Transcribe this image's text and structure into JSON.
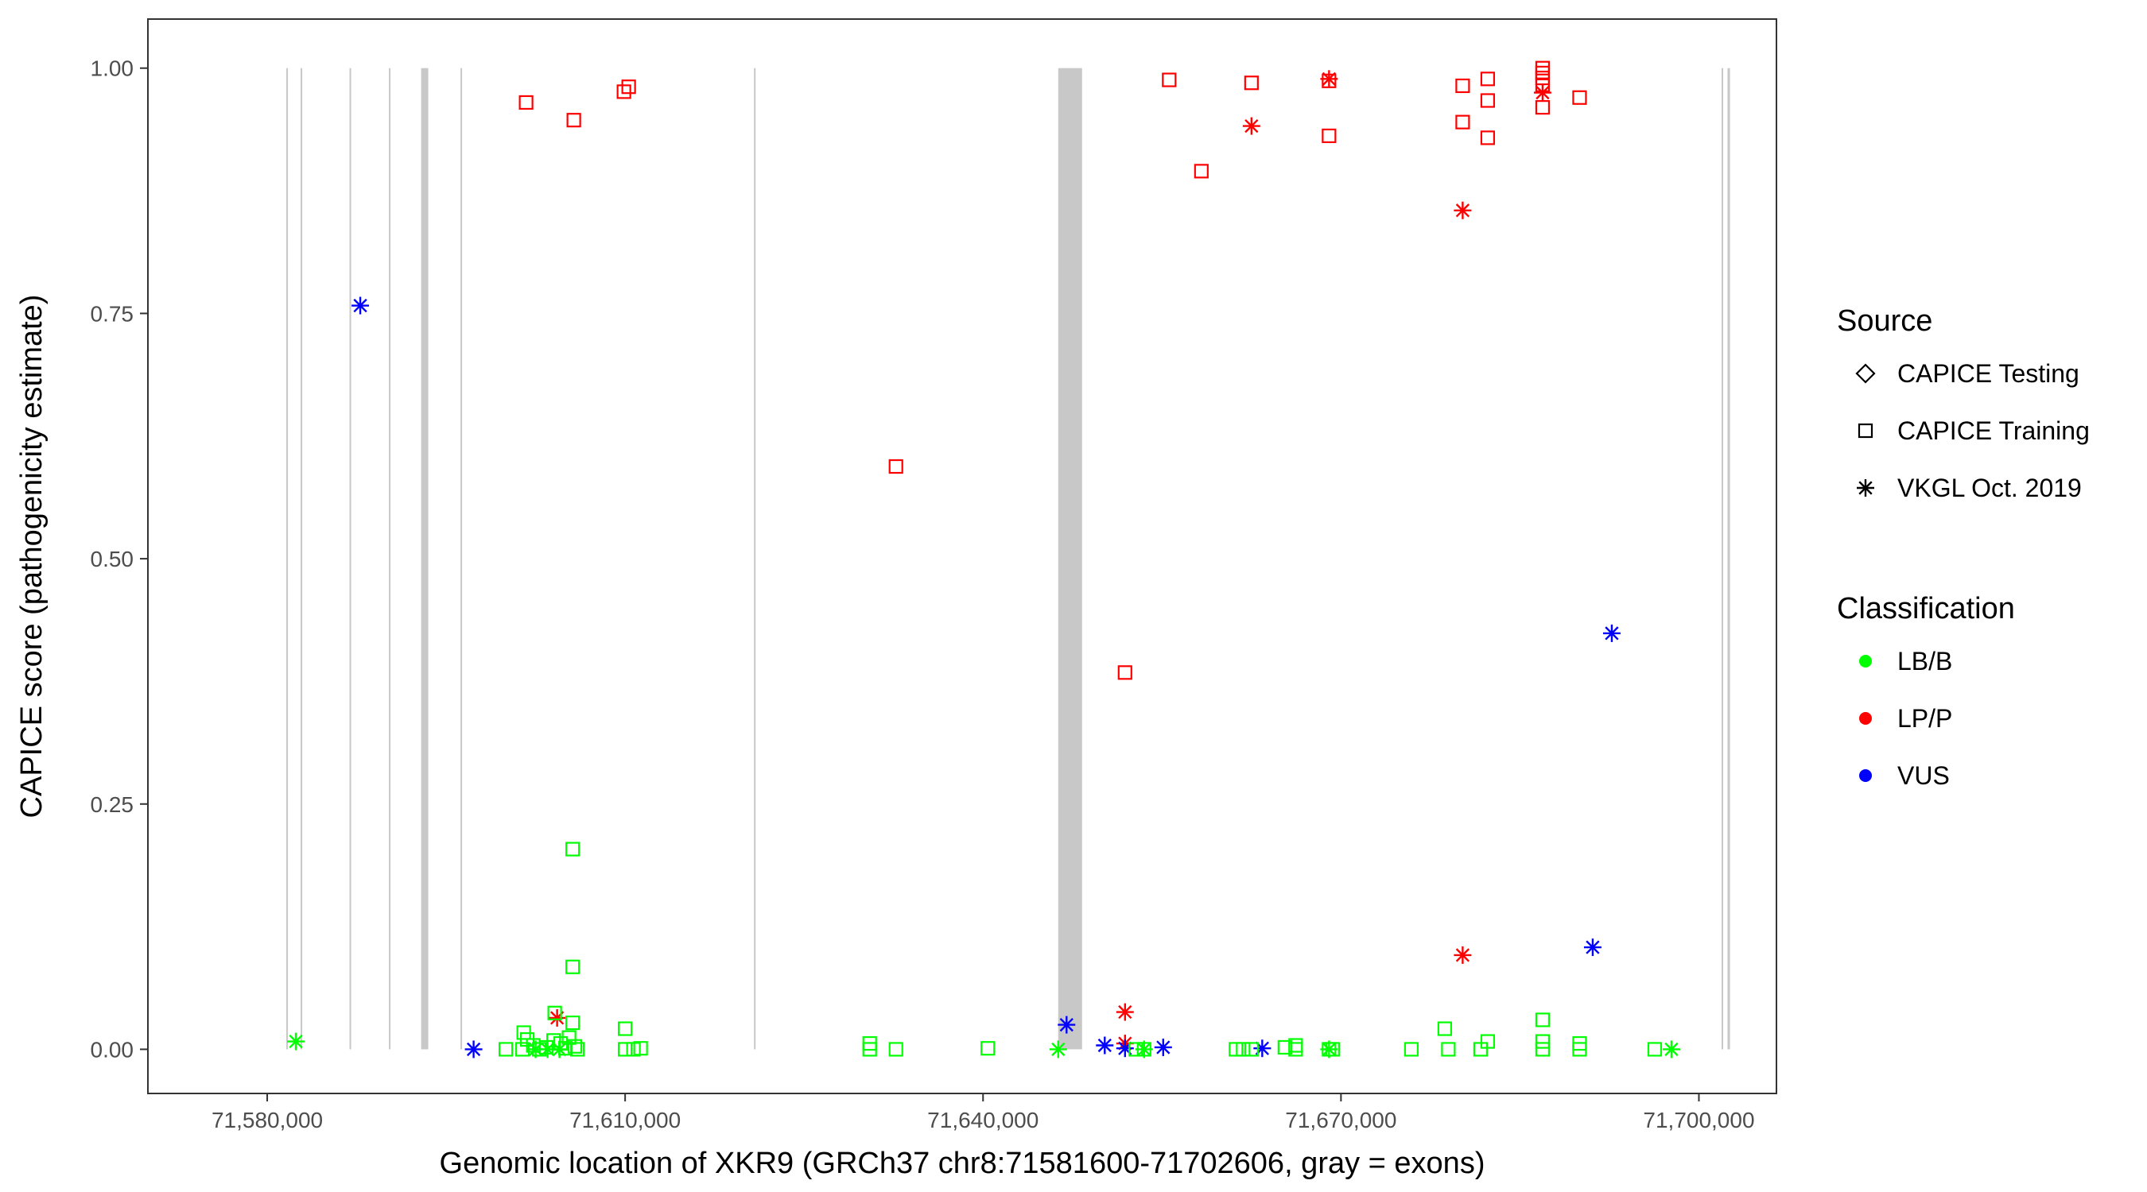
{
  "chart_data": {
    "type": "scatter",
    "title": "",
    "xlabel": "Genomic location of XKR9 (GRCh37 chr8:71581600-71702606, gray = exons)",
    "ylabel": "CAPICE score (pathogenicity estimate)",
    "xlim": [
      71570000,
      71706500
    ],
    "ylim": [
      -0.045,
      1.05
    ],
    "x_ticks": [
      71580000,
      71610000,
      71640000,
      71670000,
      71700000
    ],
    "x_tick_labels": [
      "71,580,000",
      "71,610,000",
      "71,640,000",
      "71,670,000",
      "71,700,000"
    ],
    "y_ticks": [
      0,
      0.25,
      0.5,
      0.75,
      1.0
    ],
    "y_tick_labels": [
      "0.00",
      "0.25",
      "0.50",
      "0.75",
      "1.00"
    ],
    "grid": false,
    "exons": [
      {
        "start": 71581600,
        "end": 71581720
      },
      {
        "start": 71582800,
        "end": 71582900
      },
      {
        "start": 71586900,
        "end": 71587000
      },
      {
        "start": 71590200,
        "end": 71590300
      },
      {
        "start": 71592900,
        "end": 71593500
      },
      {
        "start": 71596200,
        "end": 71596300
      },
      {
        "start": 71620800,
        "end": 71620900
      },
      {
        "start": 71646300,
        "end": 71648300
      },
      {
        "start": 71701900,
        "end": 71702000
      },
      {
        "start": 71702400,
        "end": 71702606
      }
    ],
    "legend": {
      "position": "right",
      "source_title": "Source",
      "source_entries": [
        {
          "name": "CAPICE Testing",
          "shape": "diamond"
        },
        {
          "name": "CAPICE Training",
          "shape": "square"
        },
        {
          "name": "VKGL Oct. 2019",
          "shape": "asterisk"
        }
      ],
      "class_title": "Classification",
      "class_entries": [
        {
          "name": "LB/B",
          "color": "#00ff00"
        },
        {
          "name": "LP/P",
          "color": "#ff0000"
        },
        {
          "name": "VUS",
          "color": "#0000ff"
        }
      ]
    },
    "series": [
      {
        "source": "CAPICE Training",
        "classification": "LP/P",
        "shape": "square",
        "color": "#ff0000",
        "points": [
          [
            71601700,
            0.965
          ],
          [
            71605700,
            0.947
          ],
          [
            71609900,
            0.976
          ],
          [
            71610300,
            0.981
          ],
          [
            71632700,
            0.594
          ],
          [
            71651900,
            0.384
          ],
          [
            71655600,
            0.988
          ],
          [
            71658300,
            0.895
          ],
          [
            71662500,
            0.985
          ],
          [
            71669000,
            0.931
          ],
          [
            71669000,
            0.987
          ],
          [
            71680200,
            0.982
          ],
          [
            71680200,
            0.945
          ],
          [
            71682300,
            0.989
          ],
          [
            71682300,
            0.967
          ],
          [
            71682300,
            0.929
          ],
          [
            71686900,
            1.0
          ],
          [
            71686900,
            0.995
          ],
          [
            71686900,
            0.99
          ],
          [
            71686900,
            0.983
          ],
          [
            71686900,
            0.96
          ],
          [
            71690000,
            0.97
          ]
        ]
      },
      {
        "source": "VKGL Oct. 2019",
        "classification": "LP/P",
        "shape": "asterisk",
        "color": "#ff0000",
        "points": [
          [
            71662500,
            0.941
          ],
          [
            71669000,
            0.989
          ],
          [
            71680200,
            0.855
          ],
          [
            71680200,
            0.096
          ],
          [
            71686900,
            0.975
          ],
          [
            71651900,
            0.038
          ],
          [
            71651900,
            0.006
          ],
          [
            71604300,
            0.032
          ]
        ]
      },
      {
        "source": "VKGL Oct. 2019",
        "classification": "VUS",
        "shape": "asterisk",
        "color": "#0000ff",
        "points": [
          [
            71587800,
            0.758
          ],
          [
            71597300,
            0.0
          ],
          [
            71647000,
            0.025
          ],
          [
            71650200,
            0.004
          ],
          [
            71651900,
            0.001
          ],
          [
            71655100,
            0.002
          ],
          [
            71663400,
            0.001
          ],
          [
            71692700,
            0.424
          ],
          [
            71691100,
            0.104
          ]
        ]
      },
      {
        "source": "CAPICE Training",
        "classification": "LB/B",
        "shape": "square",
        "color": "#00ff00",
        "points": [
          [
            71600000,
            0.0
          ],
          [
            71601400,
            0.0
          ],
          [
            71601500,
            0.017
          ],
          [
            71601800,
            0.01
          ],
          [
            71602300,
            0.004
          ],
          [
            71602800,
            0.0
          ],
          [
            71603400,
            0.002
          ],
          [
            71604000,
            0.009
          ],
          [
            71604100,
            0.037
          ],
          [
            71604600,
            0.006
          ],
          [
            71605000,
            0.001
          ],
          [
            71605300,
            0.012
          ],
          [
            71605600,
            0.027
          ],
          [
            71605600,
            0.084
          ],
          [
            71605600,
            0.204
          ],
          [
            71605800,
            0.003
          ],
          [
            71606000,
            0.0
          ],
          [
            71610000,
            0.021
          ],
          [
            71610000,
            0.0
          ],
          [
            71610700,
            0.0
          ],
          [
            71611300,
            0.001
          ],
          [
            71630500,
            0.006
          ],
          [
            71630500,
            0.0
          ],
          [
            71632700,
            0.0
          ],
          [
            71640400,
            0.001
          ],
          [
            71652800,
            0.0
          ],
          [
            71653500,
            0.0
          ],
          [
            71661200,
            0.0
          ],
          [
            71661800,
            0.0
          ],
          [
            71662500,
            0.0
          ],
          [
            71665300,
            0.002
          ],
          [
            71666200,
            0.004
          ],
          [
            71666200,
            0.0
          ],
          [
            71669000,
            0.0
          ],
          [
            71669300,
            0.0
          ],
          [
            71675900,
            0.0
          ],
          [
            71678700,
            0.021
          ],
          [
            71679000,
            0.0
          ],
          [
            71681700,
            0.0
          ],
          [
            71682300,
            0.008
          ],
          [
            71686900,
            0.03
          ],
          [
            71686900,
            0.008
          ],
          [
            71686900,
            0.0
          ],
          [
            71690000,
            0.006
          ],
          [
            71690000,
            0.0
          ],
          [
            71696300,
            0.0
          ]
        ]
      },
      {
        "source": "VKGL Oct. 2019",
        "classification": "LB/B",
        "shape": "asterisk",
        "color": "#00ff00",
        "points": [
          [
            71582400,
            0.008
          ],
          [
            71602500,
            0.0
          ],
          [
            71603500,
            0.0
          ],
          [
            71604500,
            0.0
          ],
          [
            71646300,
            0.0
          ],
          [
            71653500,
            0.0
          ],
          [
            71669000,
            0.0
          ],
          [
            71697700,
            0.0
          ]
        ]
      }
    ]
  }
}
